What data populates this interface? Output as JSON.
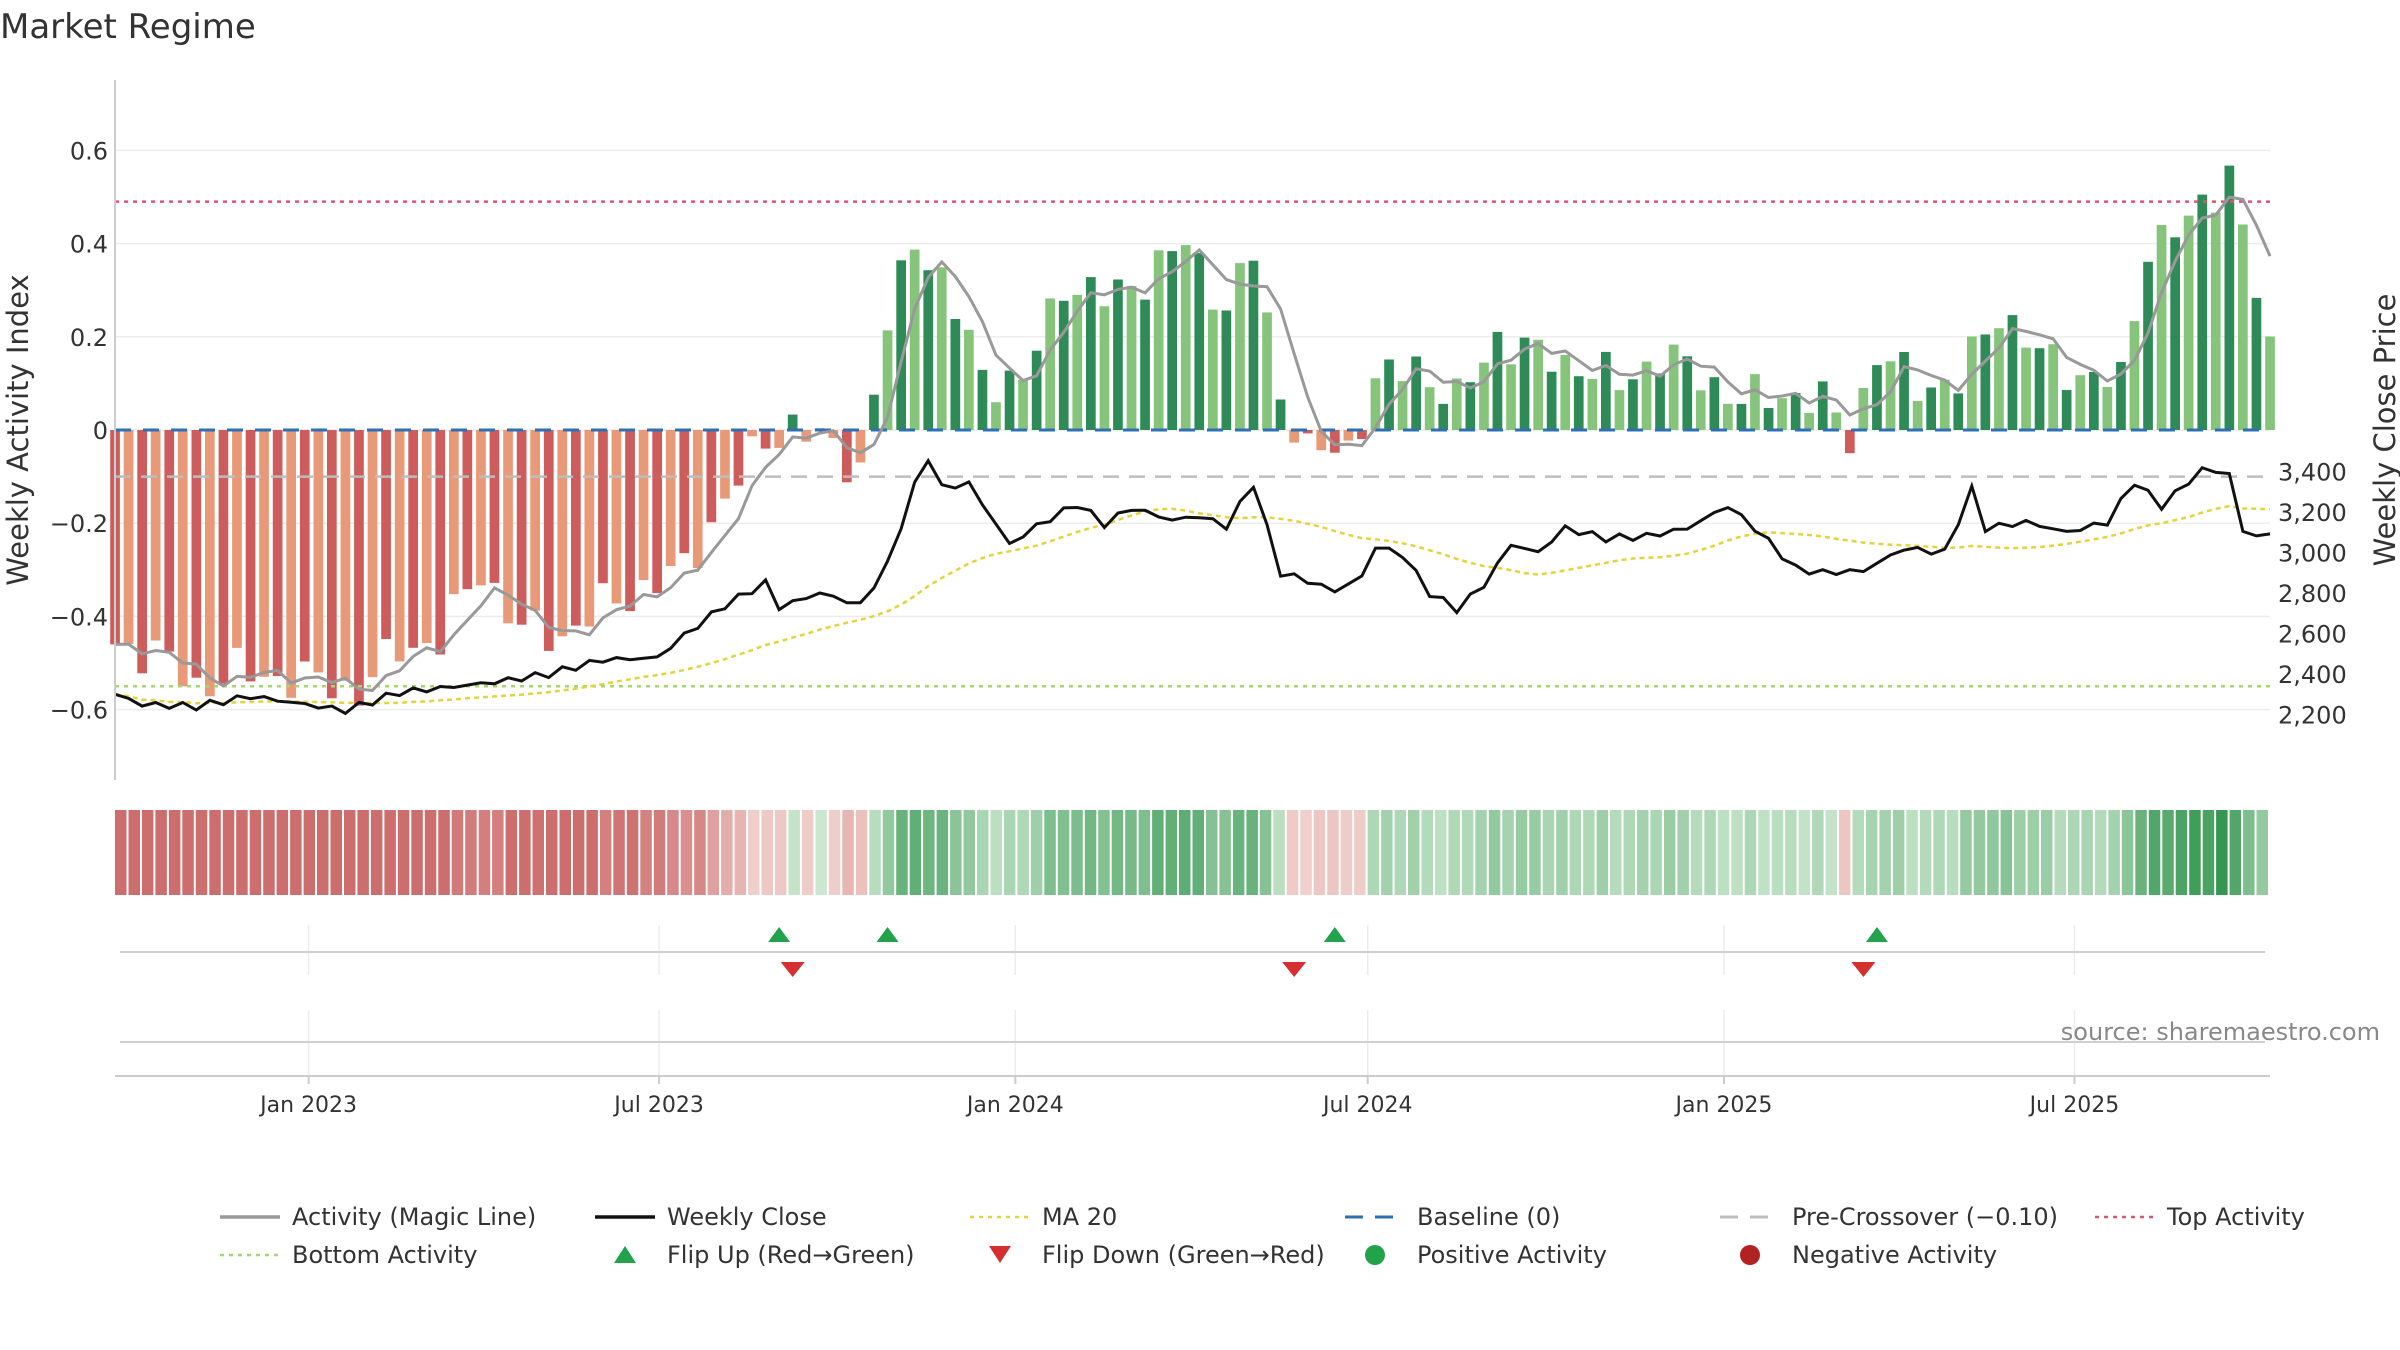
{
  "chart_data": {
    "type": "bar",
    "title": "Market Regime",
    "ylabel_left": "Weekly Activity Index",
    "ylabel_right": "Weekly Close Price",
    "source": "source: sharemaestro.com",
    "x_start": "2022-09-23",
    "x_end": "2025-10-10",
    "ylim_left": [
      -0.75,
      0.75
    ],
    "ylim_right": [
      2150,
      3500
    ],
    "left_ticks": [
      0.6,
      0.4,
      0.2,
      0,
      -0.2,
      -0.4,
      -0.6
    ],
    "left_tick_labels": [
      "0.6",
      "0.4",
      "0.2",
      "0",
      "−0.2",
      "−0.4",
      "−0.6"
    ],
    "right_ticks": [
      3400,
      3200,
      3000,
      2800,
      2600,
      2400,
      2200
    ],
    "right_tick_labels": [
      "3,400",
      "3,200",
      "3,000",
      "2,800",
      "2,600",
      "2,400",
      "2,200"
    ],
    "x_ticks": [
      {
        "date": "2023-01-01",
        "label": "Jan 2023"
      },
      {
        "date": "2023-07-01",
        "label": "Jul 2023"
      },
      {
        "date": "2024-01-01",
        "label": "Jan 2024"
      },
      {
        "date": "2024-07-01",
        "label": "Jul 2024"
      },
      {
        "date": "2025-01-01",
        "label": "Jan 2025"
      },
      {
        "date": "2025-07-01",
        "label": "Jul 2025"
      }
    ],
    "reference_lines": {
      "top_activity": 0.49,
      "bottom_activity": -0.55,
      "pre_crossover": -0.1,
      "baseline": 0
    },
    "activity_anchors": [
      [
        "2022-09-23",
        -0.46
      ],
      [
        "2022-10-14",
        -0.48
      ],
      [
        "2022-11-04",
        -0.55
      ],
      [
        "2022-11-25",
        -0.52
      ],
      [
        "2022-12-16",
        -0.53
      ],
      [
        "2023-01-06",
        -0.54
      ],
      [
        "2023-01-27",
        -0.56
      ],
      [
        "2023-02-17",
        -0.47
      ],
      [
        "2023-03-10",
        -0.45
      ],
      [
        "2023-03-31",
        -0.3
      ],
      [
        "2023-04-21",
        -0.43
      ],
      [
        "2023-05-12",
        -0.44
      ],
      [
        "2023-06-02",
        -0.38
      ],
      [
        "2023-06-23",
        -0.34
      ],
      [
        "2023-07-14",
        -0.3
      ],
      [
        "2023-08-04",
        -0.15
      ],
      [
        "2023-08-25",
        -0.02
      ],
      [
        "2023-09-08",
        0.01
      ],
      [
        "2023-09-29",
        -0.04
      ],
      [
        "2023-10-13",
        -0.08
      ],
      [
        "2023-10-27",
        0.22
      ],
      [
        "2023-11-10",
        0.42
      ],
      [
        "2023-11-24",
        0.32
      ],
      [
        "2023-12-15",
        0.12
      ],
      [
        "2024-01-05",
        0.1
      ],
      [
        "2024-01-26",
        0.32
      ],
      [
        "2024-02-16",
        0.28
      ],
      [
        "2024-03-08",
        0.33
      ],
      [
        "2024-03-29",
        0.4
      ],
      [
        "2024-04-19",
        0.26
      ],
      [
        "2024-05-03",
        0.38
      ],
      [
        "2024-05-17",
        0.08
      ],
      [
        "2024-05-31",
        -0.05
      ],
      [
        "2024-06-21",
        -0.04
      ],
      [
        "2024-07-05",
        0.1
      ],
      [
        "2024-07-26",
        0.14
      ],
      [
        "2024-08-16",
        0.06
      ],
      [
        "2024-09-06",
        0.2
      ],
      [
        "2024-09-27",
        0.16
      ],
      [
        "2024-10-18",
        0.14
      ],
      [
        "2024-11-08",
        0.1
      ],
      [
        "2024-11-29",
        0.16
      ],
      [
        "2024-12-20",
        0.12
      ],
      [
        "2025-01-10",
        0.06
      ],
      [
        "2025-01-31",
        0.08
      ],
      [
        "2025-02-21",
        0.06
      ],
      [
        "2025-03-07",
        -0.01
      ],
      [
        "2025-03-21",
        0.16
      ],
      [
        "2025-04-11",
        0.1
      ],
      [
        "2025-05-02",
        0.1
      ],
      [
        "2025-05-23",
        0.26
      ],
      [
        "2025-06-13",
        0.16
      ],
      [
        "2025-07-04",
        0.12
      ],
      [
        "2025-07-25",
        0.1
      ],
      [
        "2025-08-08",
        0.4
      ],
      [
        "2025-08-29",
        0.44
      ],
      [
        "2025-09-19",
        0.56
      ],
      [
        "2025-10-10",
        0.16
      ]
    ],
    "close_anchors": [
      [
        "2022-09-23",
        2300
      ],
      [
        "2022-10-07",
        2250
      ],
      [
        "2022-11-04",
        2240
      ],
      [
        "2022-12-02",
        2290
      ],
      [
        "2023-01-06",
        2240
      ],
      [
        "2023-01-20",
        2220
      ],
      [
        "2023-02-17",
        2310
      ],
      [
        "2023-03-10",
        2330
      ],
      [
        "2023-04-07",
        2360
      ],
      [
        "2023-05-05",
        2400
      ],
      [
        "2023-06-02",
        2470
      ],
      [
        "2023-06-30",
        2480
      ],
      [
        "2023-07-14",
        2590
      ],
      [
        "2023-08-04",
        2740
      ],
      [
        "2023-08-25",
        2850
      ],
      [
        "2023-09-01",
        2730
      ],
      [
        "2023-09-22",
        2800
      ],
      [
        "2023-10-13",
        2740
      ],
      [
        "2023-10-27",
        2940
      ],
      [
        "2023-11-10",
        3330
      ],
      [
        "2023-11-17",
        3470
      ],
      [
        "2023-11-24",
        3320
      ],
      [
        "2023-12-08",
        3340
      ],
      [
        "2023-12-29",
        3040
      ],
      [
        "2024-01-12",
        3130
      ],
      [
        "2024-02-02",
        3240
      ],
      [
        "2024-02-16",
        3140
      ],
      [
        "2024-03-01",
        3220
      ],
      [
        "2024-03-22",
        3160
      ],
      [
        "2024-04-05",
        3180
      ],
      [
        "2024-04-19",
        3130
      ],
      [
        "2024-05-03",
        3340
      ],
      [
        "2024-05-17",
        2900
      ],
      [
        "2024-05-31",
        2860
      ],
      [
        "2024-06-14",
        2810
      ],
      [
        "2024-06-28",
        2880
      ],
      [
        "2024-07-05",
        3030
      ],
      [
        "2024-07-19",
        2990
      ],
      [
        "2024-08-02",
        2800
      ],
      [
        "2024-08-16",
        2720
      ],
      [
        "2024-08-30",
        2840
      ],
      [
        "2024-09-13",
        3040
      ],
      [
        "2024-09-27",
        3000
      ],
      [
        "2024-10-11",
        3120
      ],
      [
        "2024-11-01",
        3070
      ],
      [
        "2024-11-22",
        3080
      ],
      [
        "2024-12-13",
        3120
      ],
      [
        "2025-01-03",
        3230
      ],
      [
        "2025-01-17",
        3120
      ],
      [
        "2025-02-07",
        2920
      ],
      [
        "2025-02-21",
        2900
      ],
      [
        "2025-03-14",
        2910
      ],
      [
        "2025-04-04",
        3020
      ],
      [
        "2025-04-25",
        3000
      ],
      [
        "2025-05-09",
        3310
      ],
      [
        "2025-05-16",
        3120
      ],
      [
        "2025-06-06",
        3150
      ],
      [
        "2025-06-27",
        3100
      ],
      [
        "2025-07-18",
        3150
      ],
      [
        "2025-08-01",
        3350
      ],
      [
        "2025-08-15",
        3230
      ],
      [
        "2025-09-05",
        3410
      ],
      [
        "2025-09-19",
        3390
      ],
      [
        "2025-09-26",
        3100
      ],
      [
        "2025-10-10",
        3080
      ]
    ],
    "flip_up_dates": [
      "2023-09-01",
      "2023-10-27",
      "2024-06-14",
      "2025-03-21"
    ],
    "flip_down_dates": [
      "2023-09-08",
      "2024-05-24",
      "2025-03-14"
    ],
    "series_colors": {
      "magic_line": "#999999",
      "weekly_close": "#111111",
      "ma20": "#e6d33c",
      "baseline": "#2f6fb3",
      "pre_crossover": "#bdbdbd",
      "top_activity": "#d9566e",
      "bottom_activity": "#a6d66e",
      "pos_dark": "#2e8b57",
      "pos_light": "#86c47c",
      "neg_dark": "#cd5c5c",
      "neg_light": "#e89a78",
      "flip_up": "#22a24a",
      "flip_down": "#d62f2f",
      "positive_activity": "#22a24a",
      "negative_activity": "#b22222"
    },
    "legend": [
      {
        "key": "magic_line",
        "label": "Activity (Magic Line)",
        "symbol": "line"
      },
      {
        "key": "weekly_close",
        "label": "Weekly Close",
        "symbol": "line"
      },
      {
        "key": "ma20",
        "label": "MA 20",
        "symbol": "dotted"
      },
      {
        "key": "baseline",
        "label": "Baseline (0)",
        "symbol": "dashed"
      },
      {
        "key": "pre_crossover",
        "label": "Pre-Crossover (−0.10)",
        "symbol": "dashed"
      },
      {
        "key": "top_activity",
        "label": "Top Activity",
        "symbol": "dotted"
      },
      {
        "key": "bottom_activity",
        "label": "Bottom Activity",
        "symbol": "dotted"
      },
      {
        "key": "flip_up",
        "label": "Flip Up (Red→Green)",
        "symbol": "triangle-up"
      },
      {
        "key": "flip_down",
        "label": "Flip Down (Green→Red)",
        "symbol": "triangle-down"
      },
      {
        "key": "positive_activity",
        "label": "Positive Activity",
        "symbol": "circle"
      },
      {
        "key": "negative_activity",
        "label": "Negative Activity",
        "symbol": "circle"
      }
    ],
    "legend_placement": "bottom",
    "grid": true
  }
}
